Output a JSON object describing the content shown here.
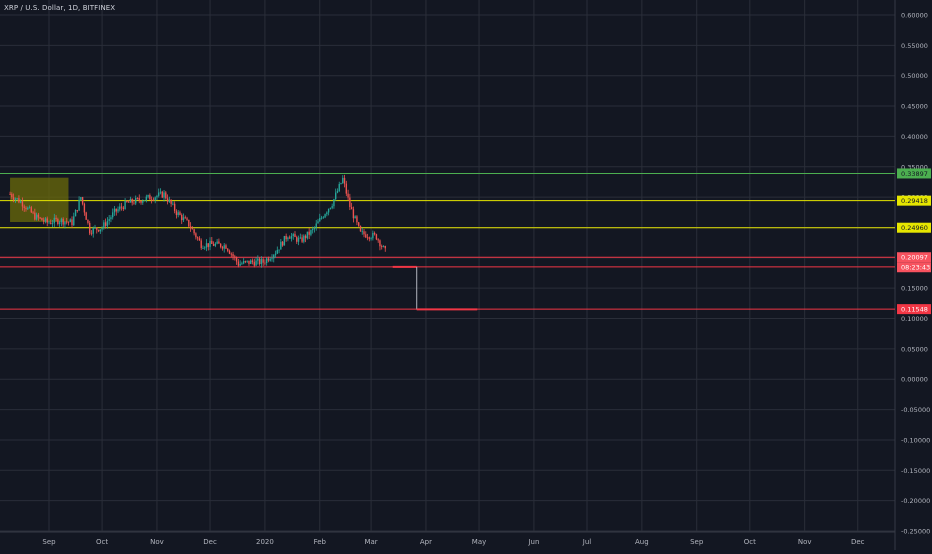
{
  "header": {
    "symbol_title": "XRP / U.S. Dollar, 1D, BITFINEX"
  },
  "colors": {
    "background": "#131722",
    "grid": "#2a2e39",
    "axis_text": "#b2b5be",
    "up_candle": "#26a69a",
    "down_candle": "#ef5350",
    "green_level": "#4caf50",
    "yellow_level": "#e6e600",
    "red_level": "#f23645",
    "box_fill": "#6b6b0a"
  },
  "chart_data": {
    "type": "candlestick",
    "title": "XRP / U.S. Dollar, 1D, BITFINEX",
    "ylim": [
      -0.25,
      0.6
    ],
    "y_ticks": [
      "0.60000",
      "0.55000",
      "0.50000",
      "0.45000",
      "0.40000",
      "0.35000",
      "0.30000",
      "0.25000",
      "0.20000",
      "0.15000",
      "0.10000",
      "0.05000",
      "0.00000",
      "-0.05000",
      "-0.10000",
      "-0.15000",
      "-0.20000",
      "-0.25000"
    ],
    "x_ticks": [
      "Sep",
      "Oct",
      "Nov",
      "Dec",
      "2020",
      "Feb",
      "Mar",
      "Apr",
      "May",
      "Jun",
      "Jul",
      "Aug",
      "Sep",
      "Oct",
      "Nov",
      "Dec"
    ],
    "grid": true,
    "price_series": [
      {
        "date": "2019-08-10",
        "close": 0.305
      },
      {
        "date": "2019-08-17",
        "close": 0.29
      },
      {
        "date": "2019-08-24",
        "close": 0.268
      },
      {
        "date": "2019-08-31",
        "close": 0.258
      },
      {
        "date": "2019-09-07",
        "close": 0.262
      },
      {
        "date": "2019-09-14",
        "close": 0.258
      },
      {
        "date": "2019-09-19",
        "close": 0.3
      },
      {
        "date": "2019-09-24",
        "close": 0.245
      },
      {
        "date": "2019-10-01",
        "close": 0.25
      },
      {
        "date": "2019-10-08",
        "close": 0.275
      },
      {
        "date": "2019-10-15",
        "close": 0.29
      },
      {
        "date": "2019-10-22",
        "close": 0.295
      },
      {
        "date": "2019-10-29",
        "close": 0.3
      },
      {
        "date": "2019-11-05",
        "close": 0.305
      },
      {
        "date": "2019-11-12",
        "close": 0.275
      },
      {
        "date": "2019-11-19",
        "close": 0.255
      },
      {
        "date": "2019-11-26",
        "close": 0.222
      },
      {
        "date": "2019-12-03",
        "close": 0.222
      },
      {
        "date": "2019-12-10",
        "close": 0.22
      },
      {
        "date": "2019-12-17",
        "close": 0.19
      },
      {
        "date": "2019-12-24",
        "close": 0.193
      },
      {
        "date": "2019-12-31",
        "close": 0.193
      },
      {
        "date": "2020-01-07",
        "close": 0.21
      },
      {
        "date": "2020-01-14",
        "close": 0.238
      },
      {
        "date": "2020-01-21",
        "close": 0.228
      },
      {
        "date": "2020-01-28",
        "close": 0.245
      },
      {
        "date": "2020-02-04",
        "close": 0.275
      },
      {
        "date": "2020-02-08",
        "close": 0.29
      },
      {
        "date": "2020-02-14",
        "close": 0.33
      },
      {
        "date": "2020-02-18",
        "close": 0.285
      },
      {
        "date": "2020-02-24",
        "close": 0.24
      },
      {
        "date": "2020-02-28",
        "close": 0.238
      },
      {
        "date": "2020-03-04",
        "close": 0.235
      },
      {
        "date": "2020-03-09",
        "close": 0.21
      }
    ],
    "horizontal_levels": [
      {
        "value": 0.33897,
        "label": "0.33897",
        "color": "#4caf50"
      },
      {
        "value": 0.29418,
        "label": "0.29418",
        "color": "#e6e600"
      },
      {
        "value": 0.2496,
        "label": "0.24960",
        "color": "#e6e600"
      },
      {
        "value": 0.20097,
        "label": "0.20097",
        "color": "#f23645"
      },
      {
        "value": 0.185,
        "label": "",
        "color": "#f23645"
      },
      {
        "value": 0.11548,
        "label": "0.11548",
        "color": "#f23645"
      }
    ],
    "countdown_label": "08:23:43",
    "highlight_box": {
      "x0": "2019-08-10",
      "x1": "2019-09-12",
      "y0": 0.259,
      "y1": 0.332
    },
    "projection": {
      "start": {
        "date": "2020-03-20",
        "value": 0.185
      },
      "end": {
        "date": "2020-04-30",
        "value": 0.115
      }
    }
  }
}
